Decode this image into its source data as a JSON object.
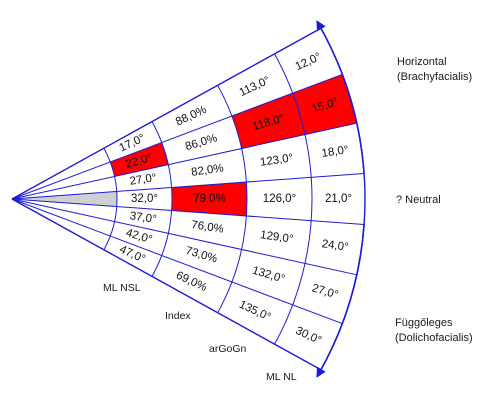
{
  "colors": {
    "grid": "#1c1cd6",
    "highlight": "#ff0000",
    "neutral_band": "#d0d0d0",
    "background": "#ffffff"
  },
  "rings": [
    {
      "axis_label": "ML NSL",
      "values": [
        "17,0°",
        "22,0°",
        "27,0°",
        "32,0°",
        "37,0°",
        "42,0°",
        "47,0°"
      ],
      "highlight_index": 1
    },
    {
      "axis_label": "Index",
      "values": [
        "88,0%",
        "86,0%",
        "82,0%",
        "79,0%",
        "76,0%",
        "73,0%",
        "69,0%"
      ],
      "highlight_index": 3
    },
    {
      "axis_label": "arGoGn",
      "values": [
        "113,0°",
        "118,0°",
        "123,0°",
        "126,0°",
        "129,0°",
        "132,0°",
        "135,0°"
      ],
      "highlight_index": 1
    },
    {
      "axis_label": "ML NL",
      "values": [
        "12,0°",
        "15,0°",
        "18,0°",
        "21,0°",
        "24,0°",
        "27,0°",
        "30,0°"
      ],
      "highlight_index": 1
    }
  ],
  "labels": {
    "horizontal": [
      "Horizontal",
      "(Brachyfacialis)"
    ],
    "neutral": "? Neutral",
    "vertical": [
      "Függőleges",
      "(Dolichofacialis)"
    ]
  }
}
